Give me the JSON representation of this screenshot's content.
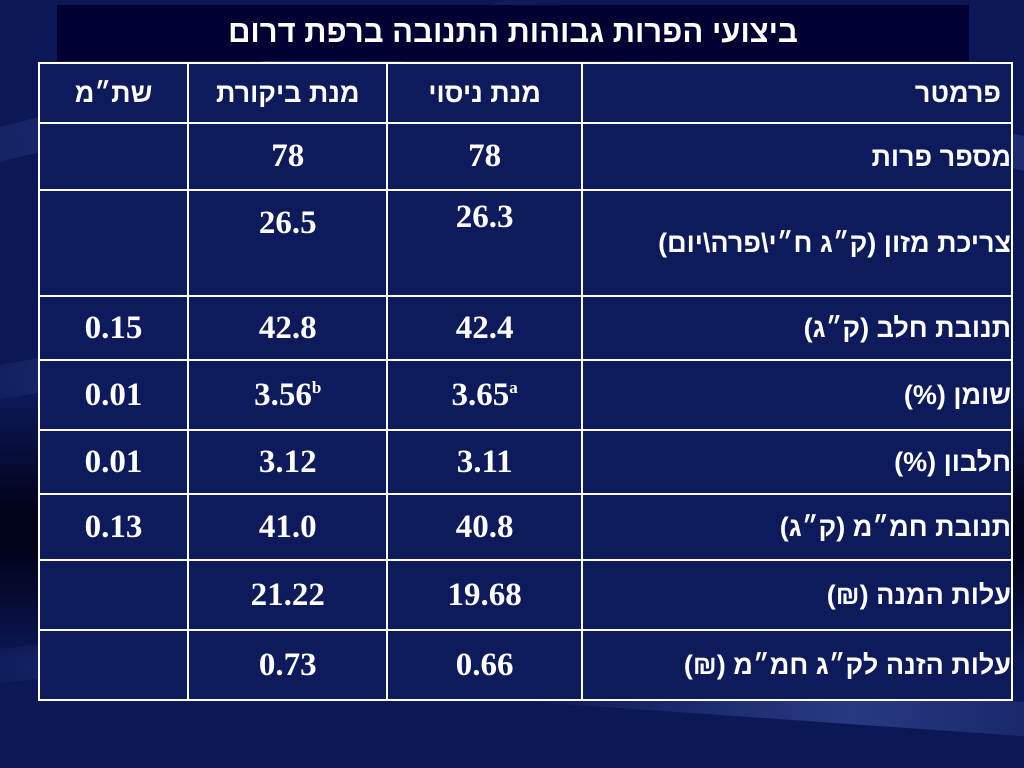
{
  "title": "ביצועי הפרות גבוהות התנובה ברפת דרום",
  "colors": {
    "background": "#0c1856",
    "cell": "#0d1a5c",
    "highlight": "#e00000",
    "border": "#ffffff"
  },
  "table": {
    "headers": {
      "param": "פרמטר",
      "trial": "מנת ניסוי",
      "control": "מנת ביקורת",
      "se": "שת״מ"
    },
    "rows": [
      {
        "param": "מספר פרות",
        "trial": "78",
        "trial_sup": "",
        "control": "78",
        "control_sup": "",
        "se": ""
      },
      {
        "param": "צריכת מזון (ק״ג ח״י\\פרה\\יום)",
        "trial": "26.3",
        "trial_sup": "",
        "control": "26.5",
        "control_sup": "",
        "se": ""
      },
      {
        "param": "תנובת חלב (ק״ג)",
        "trial": "42.4",
        "trial_sup": "",
        "control": "42.8",
        "control_sup": "",
        "se": "0.15"
      },
      {
        "param": "שומן (%)",
        "trial": "3.65",
        "trial_sup": "a",
        "control": "3.56",
        "control_sup": "b",
        "se": "0.01"
      },
      {
        "param": "חלבון (%)",
        "trial": "3.11",
        "trial_sup": "",
        "control": "3.12",
        "control_sup": "",
        "se": "0.01"
      },
      {
        "param": "תנובת  חמ״מ (ק״ג)",
        "trial": "40.8",
        "trial_sup": "",
        "control": "41.0",
        "control_sup": "",
        "se": "0.13"
      },
      {
        "param": "עלות המנה (₪)",
        "trial": "19.68",
        "trial_sup": "",
        "control": "21.22",
        "control_sup": "",
        "se": ""
      },
      {
        "param": "עלות הזנה לק״ג חמ״מ (₪)",
        "trial": "0.66",
        "trial_sup": "",
        "control": "0.73",
        "control_sup": "",
        "se": ""
      }
    ]
  }
}
